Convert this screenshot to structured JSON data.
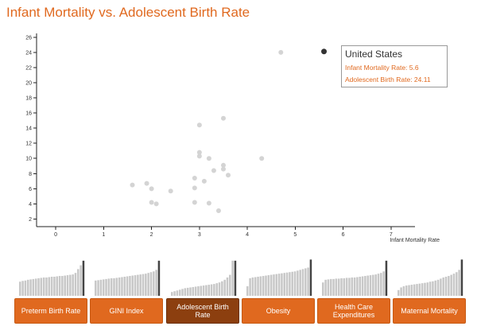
{
  "page": {
    "title": "Infant Mortality vs. Adolescent Birth Rate"
  },
  "chart_data": {
    "type": "scatter",
    "title": "Infant Mortality vs. Adolescent Birth Rate",
    "xlabel": "Infant Mortality Rate",
    "ylabel": "",
    "xlim": [
      -0.4,
      7.5
    ],
    "ylim": [
      1,
      26.5
    ],
    "x_ticks": [
      0,
      1,
      2,
      3,
      4,
      5,
      6,
      7
    ],
    "y_ticks": [
      2,
      4,
      6,
      8,
      10,
      12,
      14,
      16,
      18,
      20,
      22,
      24,
      26
    ],
    "grid": false,
    "points": [
      {
        "x": 1.6,
        "y": 6.5
      },
      {
        "x": 1.9,
        "y": 6.7
      },
      {
        "x": 2.0,
        "y": 6.0
      },
      {
        "x": 2.0,
        "y": 4.2
      },
      {
        "x": 2.1,
        "y": 4.0
      },
      {
        "x": 2.4,
        "y": 5.7
      },
      {
        "x": 2.9,
        "y": 7.4
      },
      {
        "x": 2.9,
        "y": 6.1
      },
      {
        "x": 2.9,
        "y": 4.2
      },
      {
        "x": 3.0,
        "y": 14.4
      },
      {
        "x": 3.0,
        "y": 10.8
      },
      {
        "x": 3.0,
        "y": 10.3
      },
      {
        "x": 3.1,
        "y": 7.0
      },
      {
        "x": 3.2,
        "y": 10.0
      },
      {
        "x": 3.2,
        "y": 4.1
      },
      {
        "x": 3.3,
        "y": 8.4
      },
      {
        "x": 3.4,
        "y": 3.1
      },
      {
        "x": 3.5,
        "y": 15.3
      },
      {
        "x": 3.5,
        "y": 9.1
      },
      {
        "x": 3.5,
        "y": 8.6
      },
      {
        "x": 3.6,
        "y": 7.8
      },
      {
        "x": 4.3,
        "y": 10.0
      },
      {
        "x": 4.7,
        "y": 24.0
      }
    ],
    "selected": {
      "name": "United States",
      "x": 5.6,
      "y": 24.11
    }
  },
  "tooltip": {
    "name": "United States",
    "line1": "Infant Mortality Rate: 5.6",
    "line2": "Adolescent Birth Rate: 24.11"
  },
  "metrics": [
    {
      "label": "Preterm Birth Rate",
      "active": false,
      "values": [
        0.37,
        0.39,
        0.4,
        0.42,
        0.43,
        0.44,
        0.45,
        0.46,
        0.47,
        0.48,
        0.48,
        0.49,
        0.5,
        0.5,
        0.51,
        0.52,
        0.52,
        0.53,
        0.54,
        0.55,
        0.56,
        0.6,
        0.7,
        0.8,
        0.92
      ],
      "highlight": 24
    },
    {
      "label": "GINI Index",
      "active": false,
      "values": [
        0.4,
        0.41,
        0.42,
        0.43,
        0.44,
        0.45,
        0.46,
        0.46,
        0.47,
        0.48,
        0.49,
        0.5,
        0.51,
        0.52,
        0.53,
        0.54,
        0.55,
        0.56,
        0.57,
        0.58,
        0.6,
        0.62,
        0.64,
        0.68,
        0.92
      ],
      "highlight": 24
    },
    {
      "label": "Adolescent Birth Rate",
      "active": true,
      "values": [
        0.1,
        0.12,
        0.14,
        0.16,
        0.18,
        0.2,
        0.21,
        0.22,
        0.23,
        0.24,
        0.25,
        0.26,
        0.27,
        0.28,
        0.29,
        0.3,
        0.31,
        0.33,
        0.35,
        0.38,
        0.42,
        0.48,
        0.55,
        0.92,
        0.92
      ],
      "highlight": 24
    },
    {
      "label": "Obesity",
      "active": false,
      "values": [
        0.25,
        0.46,
        0.48,
        0.49,
        0.5,
        0.51,
        0.52,
        0.53,
        0.54,
        0.55,
        0.56,
        0.57,
        0.58,
        0.59,
        0.6,
        0.61,
        0.62,
        0.63,
        0.64,
        0.66,
        0.68,
        0.7,
        0.72,
        0.74,
        0.95
      ],
      "highlight": 24
    },
    {
      "label": "Health Care Expenditures",
      "active": false,
      "values": [
        0.35,
        0.42,
        0.43,
        0.44,
        0.44,
        0.45,
        0.45,
        0.46,
        0.46,
        0.47,
        0.47,
        0.48,
        0.48,
        0.49,
        0.5,
        0.51,
        0.52,
        0.53,
        0.54,
        0.55,
        0.56,
        0.58,
        0.6,
        0.64,
        0.92
      ],
      "highlight": 24
    },
    {
      "label": "Maternal Mortality",
      "active": false,
      "values": [
        0.15,
        0.22,
        0.25,
        0.27,
        0.28,
        0.29,
        0.3,
        0.31,
        0.32,
        0.33,
        0.34,
        0.35,
        0.37,
        0.38,
        0.4,
        0.42,
        0.45,
        0.48,
        0.5,
        0.52,
        0.55,
        0.58,
        0.62,
        0.68,
        0.95
      ],
      "highlight": 24
    }
  ],
  "colors": {
    "accent": "#e0691f",
    "accent_active": "#8c3f0f",
    "dot": "#d4d4d4",
    "dot_selected": "#333333",
    "bar": "#c8c8c8",
    "bar_highlight": "#444444"
  }
}
